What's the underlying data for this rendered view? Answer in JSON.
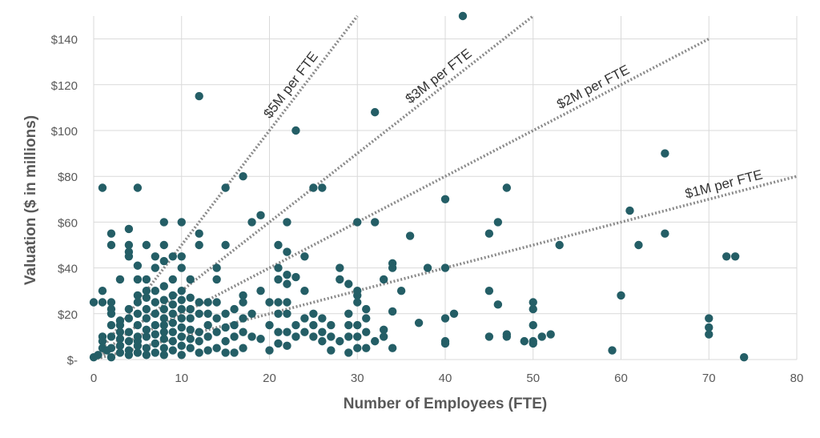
{
  "chart_data": {
    "type": "scatter",
    "xlabel": "Number of Employees (FTE)",
    "ylabel": "Valuation ($ in millions)",
    "xlim": [
      0,
      80
    ],
    "ylim": [
      0,
      150
    ],
    "x_ticks": [
      0,
      10,
      20,
      30,
      40,
      50,
      60,
      70,
      80
    ],
    "x_tick_labels": [
      "0",
      "10",
      "20",
      "30",
      "40",
      "50",
      "60",
      "70",
      "80"
    ],
    "y_ticks": [
      0,
      20,
      40,
      60,
      80,
      100,
      120,
      140
    ],
    "y_tick_labels": [
      "$-",
      "$20",
      "$40",
      "$60",
      "$80",
      "$100",
      "$120",
      "$140"
    ],
    "grid": true,
    "colors": {
      "point": "#245e66",
      "reference_line": "#8a8a8a",
      "grid": "#d9d9d9",
      "text": "#595959"
    },
    "reference_lines": [
      {
        "label": "$5M per FTE",
        "slope": 5,
        "x_end": 30
      },
      {
        "label": "$3M per FTE",
        "slope": 3,
        "x_end": 50
      },
      {
        "label": "$2M per FTE",
        "slope": 2,
        "x_end": 70
      },
      {
        "label": "$1M per FTE",
        "slope": 1,
        "x_end": 80
      }
    ],
    "points": [
      [
        0,
        1
      ],
      [
        0,
        25
      ],
      [
        0.5,
        2
      ],
      [
        1,
        5
      ],
      [
        1,
        8
      ],
      [
        1,
        10
      ],
      [
        1,
        25
      ],
      [
        1,
        30
      ],
      [
        1,
        75
      ],
      [
        1.5,
        4
      ],
      [
        2,
        1
      ],
      [
        2,
        5
      ],
      [
        2,
        10
      ],
      [
        2,
        15
      ],
      [
        2,
        20
      ],
      [
        2,
        22
      ],
      [
        2,
        25
      ],
      [
        2,
        50
      ],
      [
        2,
        55
      ],
      [
        3,
        3
      ],
      [
        3,
        6
      ],
      [
        3,
        9
      ],
      [
        3,
        12
      ],
      [
        3,
        15
      ],
      [
        3,
        17
      ],
      [
        3,
        35
      ],
      [
        4,
        2
      ],
      [
        4,
        4
      ],
      [
        4,
        8
      ],
      [
        4,
        12
      ],
      [
        4,
        18
      ],
      [
        4,
        22
      ],
      [
        4,
        45
      ],
      [
        4,
        47
      ],
      [
        4,
        50
      ],
      [
        4,
        57
      ],
      [
        5,
        3
      ],
      [
        5,
        6
      ],
      [
        5,
        8
      ],
      [
        5,
        10
      ],
      [
        5,
        15
      ],
      [
        5,
        20
      ],
      [
        5,
        25
      ],
      [
        5,
        28
      ],
      [
        5,
        35
      ],
      [
        5,
        41
      ],
      [
        5,
        75
      ],
      [
        6,
        2
      ],
      [
        6,
        5
      ],
      [
        6,
        10
      ],
      [
        6,
        13
      ],
      [
        6,
        18
      ],
      [
        6,
        22
      ],
      [
        6,
        27
      ],
      [
        6,
        30
      ],
      [
        6,
        35
      ],
      [
        6,
        50
      ],
      [
        7,
        3
      ],
      [
        7,
        7
      ],
      [
        7,
        11
      ],
      [
        7,
        15
      ],
      [
        7,
        20
      ],
      [
        7,
        25
      ],
      [
        7,
        30
      ],
      [
        7,
        40
      ],
      [
        7,
        45
      ],
      [
        8,
        2
      ],
      [
        8,
        5
      ],
      [
        8,
        9
      ],
      [
        8,
        12
      ],
      [
        8,
        15
      ],
      [
        8,
        18
      ],
      [
        8,
        22
      ],
      [
        8,
        26
      ],
      [
        8,
        32
      ],
      [
        8,
        43
      ],
      [
        8,
        50
      ],
      [
        8,
        60
      ],
      [
        9,
        4
      ],
      [
        9,
        8
      ],
      [
        9,
        12
      ],
      [
        9,
        16
      ],
      [
        9,
        20
      ],
      [
        9,
        24
      ],
      [
        9,
        28
      ],
      [
        9,
        35
      ],
      [
        9,
        45
      ],
      [
        10,
        2
      ],
      [
        10,
        6
      ],
      [
        10,
        10
      ],
      [
        10,
        14
      ],
      [
        10,
        18
      ],
      [
        10,
        22
      ],
      [
        10,
        26
      ],
      [
        10,
        30
      ],
      [
        10,
        40
      ],
      [
        10,
        45
      ],
      [
        10,
        60
      ],
      [
        11,
        5
      ],
      [
        11,
        9
      ],
      [
        11,
        13
      ],
      [
        11,
        18
      ],
      [
        11,
        22
      ],
      [
        11,
        27
      ],
      [
        11,
        35
      ],
      [
        12,
        3
      ],
      [
        12,
        8
      ],
      [
        12,
        12
      ],
      [
        12,
        20
      ],
      [
        12,
        25
      ],
      [
        12,
        50
      ],
      [
        12,
        55
      ],
      [
        12,
        115
      ],
      [
        13,
        4
      ],
      [
        13,
        10
      ],
      [
        13,
        15
      ],
      [
        13,
        20
      ],
      [
        13,
        25
      ],
      [
        14,
        5
      ],
      [
        14,
        12
      ],
      [
        14,
        18
      ],
      [
        14,
        25
      ],
      [
        14,
        35
      ],
      [
        14,
        40
      ],
      [
        15,
        3
      ],
      [
        15,
        8
      ],
      [
        15,
        14
      ],
      [
        15,
        20
      ],
      [
        15,
        50
      ],
      [
        15,
        75
      ],
      [
        16,
        3
      ],
      [
        16,
        10
      ],
      [
        16,
        15
      ],
      [
        16,
        22
      ],
      [
        17,
        5
      ],
      [
        17,
        12
      ],
      [
        17,
        18
      ],
      [
        17,
        25
      ],
      [
        17,
        28
      ],
      [
        17,
        80
      ],
      [
        18,
        10
      ],
      [
        18,
        20
      ],
      [
        18,
        60
      ],
      [
        19,
        9
      ],
      [
        19,
        30
      ],
      [
        19,
        63
      ],
      [
        20,
        4
      ],
      [
        20,
        15
      ],
      [
        20,
        25
      ],
      [
        21,
        7
      ],
      [
        21,
        12
      ],
      [
        21,
        20
      ],
      [
        21,
        25
      ],
      [
        21,
        35
      ],
      [
        21,
        40
      ],
      [
        21,
        50
      ],
      [
        22,
        6
      ],
      [
        22,
        12
      ],
      [
        22,
        20
      ],
      [
        22,
        25
      ],
      [
        22,
        33
      ],
      [
        22,
        37
      ],
      [
        22,
        47
      ],
      [
        22,
        60
      ],
      [
        23,
        10
      ],
      [
        23,
        15
      ],
      [
        23,
        36
      ],
      [
        23,
        100
      ],
      [
        24,
        12
      ],
      [
        24,
        18
      ],
      [
        24,
        30
      ],
      [
        24,
        45
      ],
      [
        25,
        10
      ],
      [
        25,
        15
      ],
      [
        25,
        20
      ],
      [
        25,
        75
      ],
      [
        26,
        8
      ],
      [
        26,
        12
      ],
      [
        26,
        18
      ],
      [
        26,
        75
      ],
      [
        27,
        4
      ],
      [
        27,
        10
      ],
      [
        27,
        15
      ],
      [
        28,
        8
      ],
      [
        28,
        35
      ],
      [
        28,
        40
      ],
      [
        29,
        3
      ],
      [
        29,
        10
      ],
      [
        29,
        15
      ],
      [
        29,
        20
      ],
      [
        29,
        33
      ],
      [
        30,
        5
      ],
      [
        30,
        10
      ],
      [
        30,
        15
      ],
      [
        30,
        25
      ],
      [
        30,
        28
      ],
      [
        30,
        30
      ],
      [
        30,
        60
      ],
      [
        31,
        5
      ],
      [
        31,
        12
      ],
      [
        31,
        18
      ],
      [
        31,
        22
      ],
      [
        32,
        8
      ],
      [
        32,
        60
      ],
      [
        32,
        108
      ],
      [
        33,
        10
      ],
      [
        33,
        13
      ],
      [
        33,
        35
      ],
      [
        34,
        5
      ],
      [
        34,
        21
      ],
      [
        34,
        40
      ],
      [
        34,
        42
      ],
      [
        35,
        30
      ],
      [
        36,
        54
      ],
      [
        37,
        16
      ],
      [
        38,
        40
      ],
      [
        40,
        7
      ],
      [
        40,
        8
      ],
      [
        40,
        18
      ],
      [
        40,
        40
      ],
      [
        40,
        70
      ],
      [
        41,
        20
      ],
      [
        42,
        150
      ],
      [
        45,
        10
      ],
      [
        45,
        30
      ],
      [
        45,
        55
      ],
      [
        46,
        24
      ],
      [
        46,
        60
      ],
      [
        47,
        10
      ],
      [
        47,
        11
      ],
      [
        47,
        75
      ],
      [
        49,
        8
      ],
      [
        50,
        7
      ],
      [
        50,
        8
      ],
      [
        50,
        15
      ],
      [
        50,
        22
      ],
      [
        50,
        25
      ],
      [
        51,
        10
      ],
      [
        52,
        11
      ],
      [
        53,
        50
      ],
      [
        59,
        4
      ],
      [
        60,
        28
      ],
      [
        61,
        65
      ],
      [
        62,
        50
      ],
      [
        65,
        55
      ],
      [
        65,
        90
      ],
      [
        70,
        11
      ],
      [
        70,
        14
      ],
      [
        70,
        18
      ],
      [
        72,
        45
      ],
      [
        73,
        45
      ],
      [
        74,
        1
      ]
    ]
  }
}
